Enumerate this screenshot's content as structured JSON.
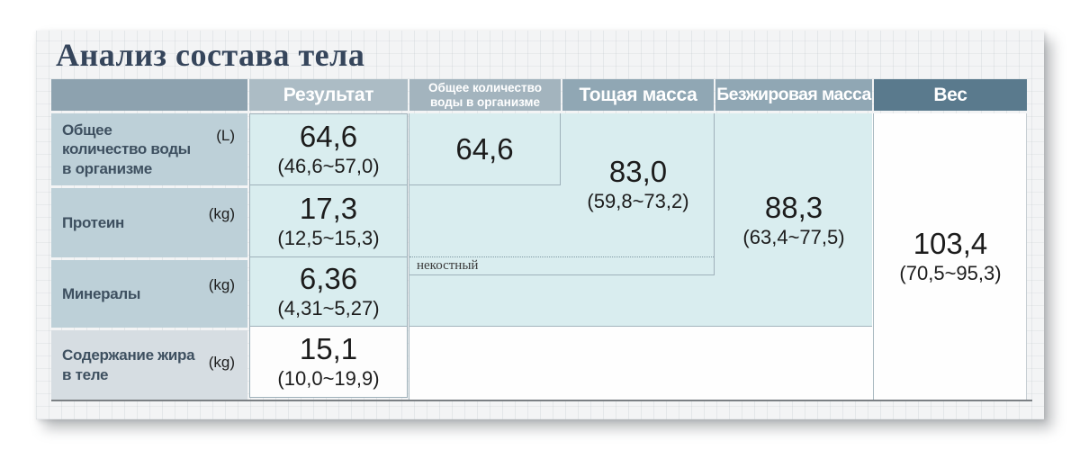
{
  "title": "Анализ состава тела",
  "table": {
    "headers": {
      "result": "Результат",
      "water": "Общее количество воды в организме",
      "lean_mass": "Тощая масса",
      "fat_free_mass": "Безжировая масса",
      "weight": "Вес"
    },
    "rows": [
      {
        "label": "Общее количество воды в организме",
        "unit": "(L)",
        "value": "64,6",
        "range": "(46,6~57,0)"
      },
      {
        "label": "Протеин",
        "unit": "(kg)",
        "value": "17,3",
        "range": "(12,5~15,3)"
      },
      {
        "label": "Минералы",
        "unit": "(kg)",
        "value": "6,36",
        "range": "(4,31~5,27)"
      },
      {
        "label": "Содержание жира в теле",
        "unit": "(kg)",
        "value": "15,1",
        "range": "(10,0~19,9)"
      }
    ],
    "merged": {
      "water": {
        "value": "64,6"
      },
      "lean_mass": {
        "value": "83,0",
        "range": "(59,8~73,2)",
        "note": "некостный"
      },
      "fat_free_mass": {
        "value": "88,3",
        "range": "(63,4~77,5)"
      },
      "weight": {
        "value": "103,4",
        "range": "(70,5~95,3)"
      }
    },
    "colors": {
      "header_corner": "#8DA2AF",
      "header_result": "#ACBCC5",
      "header_water": "#A3B4BE",
      "header_mid": "#90A7B4",
      "header_weight": "#5A7A8D",
      "cell_blue": "#D9EDEF",
      "label_blue": "#BDD0D8",
      "label_gray": "#D6DDE2",
      "border": "#9FB1BA",
      "title_text": "#35455B"
    }
  }
}
